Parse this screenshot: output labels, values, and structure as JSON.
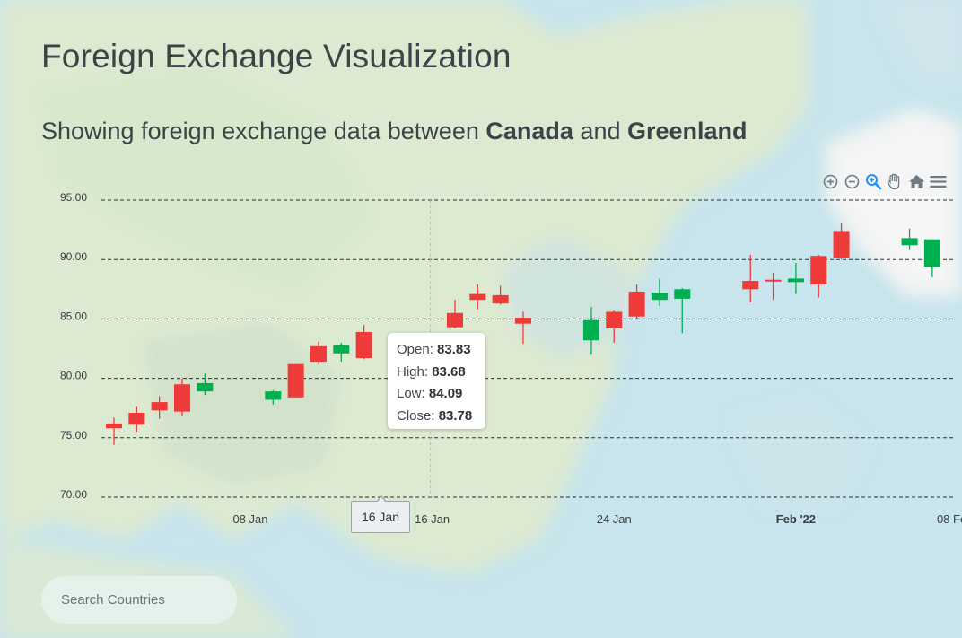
{
  "header": {
    "title": "Foreign Exchange Visualization",
    "subtitle_prefix": "Showing foreign exchange data between ",
    "country_a": "Canada",
    "subtitle_joiner": " and ",
    "country_b": "Greenland"
  },
  "toolbar": {
    "icons": [
      "zoom-in-icon",
      "zoom-out-icon",
      "selection-zoom-icon",
      "pan-icon",
      "reset-home-icon",
      "menu-icon"
    ],
    "active_icon": "selection-zoom-icon"
  },
  "colors": {
    "up": "#00b050",
    "down": "#ef3a3a",
    "grid": "#2c2f30",
    "axis_text": "#3a3f42",
    "active_icon": "#1e90ff",
    "icon": "#6e7b83"
  },
  "chart_data": {
    "type": "candlestick",
    "title": "",
    "xlabel": "",
    "ylabel": "",
    "ylim": [
      70,
      95
    ],
    "y_ticks": [
      "95.00",
      "90.00",
      "85.00",
      "80.00",
      "75.00",
      "70.00"
    ],
    "x_ticks": [
      {
        "date": "2022-01-08",
        "label": "08 Jan",
        "bold": false
      },
      {
        "date": "2022-01-16",
        "label": "16 Jan",
        "bold": false
      },
      {
        "date": "2022-01-24",
        "label": "24 Jan",
        "bold": false
      },
      {
        "date": "2022-02-01",
        "label": "Feb '22",
        "bold": true
      },
      {
        "date": "2022-02-08",
        "label": "08 Feb",
        "bold": false
      }
    ],
    "x_range": [
      "2022-01-01",
      "2022-02-08"
    ],
    "grid": "horizontal-dashed",
    "series": [
      {
        "date": "2022-01-02",
        "open": 76.2,
        "high": 76.7,
        "low": 74.4,
        "close": 75.8
      },
      {
        "date": "2022-01-03",
        "open": 77.1,
        "high": 77.6,
        "low": 75.5,
        "close": 76.1
      },
      {
        "date": "2022-01-04",
        "open": 78.0,
        "high": 78.5,
        "low": 76.6,
        "close": 77.3
      },
      {
        "date": "2022-01-05",
        "open": 79.5,
        "high": 80.0,
        "low": 76.8,
        "close": 77.2
      },
      {
        "date": "2022-01-06",
        "open": 78.9,
        "high": 80.4,
        "low": 78.6,
        "close": 79.6
      },
      {
        "date": "2022-01-09",
        "open": 78.2,
        "high": 79.0,
        "low": 77.8,
        "close": 78.9
      },
      {
        "date": "2022-01-10",
        "open": 81.2,
        "high": 81.2,
        "low": 78.4,
        "close": 78.4
      },
      {
        "date": "2022-01-11",
        "open": 82.7,
        "high": 83.1,
        "low": 81.2,
        "close": 81.4
      },
      {
        "date": "2022-01-12",
        "open": 82.1,
        "high": 83.0,
        "low": 81.4,
        "close": 82.8
      },
      {
        "date": "2022-01-13",
        "open": 83.9,
        "high": 84.5,
        "low": 81.6,
        "close": 81.7
      },
      {
        "date": "2022-01-17",
        "open": 85.5,
        "high": 86.6,
        "low": 84.2,
        "close": 84.3
      },
      {
        "date": "2022-01-18",
        "open": 87.1,
        "high": 87.9,
        "low": 85.8,
        "close": 86.6
      },
      {
        "date": "2022-01-19",
        "open": 87.0,
        "high": 87.8,
        "low": 86.2,
        "close": 86.3
      },
      {
        "date": "2022-01-20",
        "open": 85.1,
        "high": 85.6,
        "low": 82.9,
        "close": 84.6
      },
      {
        "date": "2022-01-23",
        "open": 83.2,
        "high": 86.0,
        "low": 82.0,
        "close": 84.9
      },
      {
        "date": "2022-01-24",
        "open": 85.6,
        "high": 85.7,
        "low": 83.0,
        "close": 84.2
      },
      {
        "date": "2022-01-25",
        "open": 87.3,
        "high": 87.9,
        "low": 85.0,
        "close": 85.2
      },
      {
        "date": "2022-01-26",
        "open": 86.6,
        "high": 88.4,
        "low": 86.1,
        "close": 87.2
      },
      {
        "date": "2022-01-27",
        "open": 86.7,
        "high": 87.6,
        "low": 83.8,
        "close": 87.5
      },
      {
        "date": "2022-01-30",
        "open": 88.2,
        "high": 90.4,
        "low": 86.4,
        "close": 87.5
      },
      {
        "date": "2022-01-31",
        "open": 88.3,
        "high": 88.9,
        "low": 86.6,
        "close": 88.2
      },
      {
        "date": "2022-02-01",
        "open": 88.1,
        "high": 89.7,
        "low": 87.1,
        "close": 88.4
      },
      {
        "date": "2022-02-02",
        "open": 90.3,
        "high": 90.4,
        "low": 86.8,
        "close": 87.9
      },
      {
        "date": "2022-02-03",
        "open": 92.4,
        "high": 93.1,
        "low": 90.0,
        "close": 90.1
      },
      {
        "date": "2022-02-06",
        "open": 91.2,
        "high": 92.6,
        "low": 90.8,
        "close": 91.8
      },
      {
        "date": "2022-02-07",
        "open": 89.4,
        "high": 91.7,
        "low": 88.5,
        "close": 91.7
      }
    ],
    "crosshair_date": "2022-01-16"
  },
  "tooltip": {
    "open_label": "Open:",
    "open_value": "83.83",
    "high_label": "High:",
    "high_value": "83.68",
    "low_label": "Low:",
    "low_value": "84.09",
    "close_label": "Close:",
    "close_value": "83.78"
  },
  "crosshair": {
    "x_label": "16 Jan"
  },
  "search": {
    "placeholder": "Search Countries",
    "value": ""
  }
}
